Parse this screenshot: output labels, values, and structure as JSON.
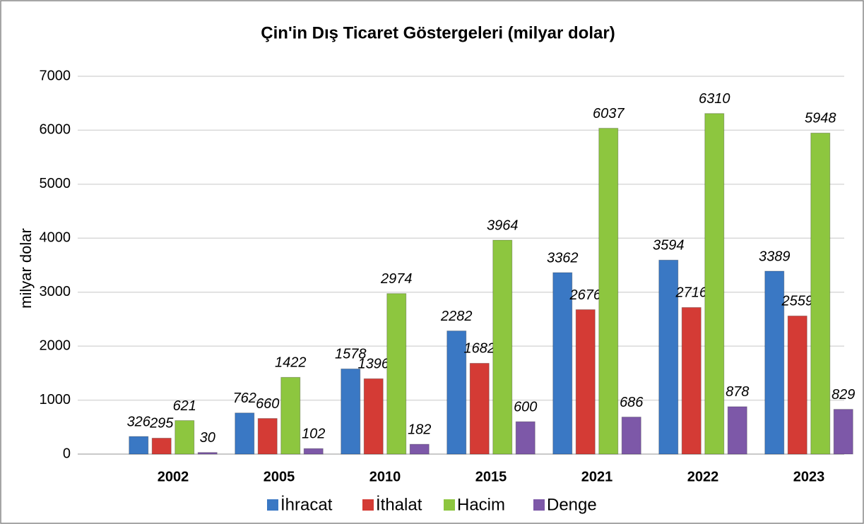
{
  "chart_data": {
    "type": "bar",
    "title": "Çin'in Dış Ticaret Göstergeleri  (milyar dolar)",
    "y_label": "milyar dolar",
    "categories": [
      "2002",
      "2005",
      "2010",
      "2015",
      "2021",
      "2022",
      "2023"
    ],
    "series": [
      {
        "name": "İhracat",
        "color": "#3a78c4",
        "values": [
          326,
          762,
          1578,
          2282,
          3362,
          3594,
          3389
        ]
      },
      {
        "name": "İthalat",
        "color": "#d43b35",
        "values": [
          295,
          660,
          1396,
          1682,
          2676,
          2716,
          2559
        ]
      },
      {
        "name": "Hacim",
        "color": "#8dc63f",
        "values": [
          621,
          1422,
          2974,
          3964,
          6037,
          6310,
          5948
        ]
      },
      {
        "name": "Denge",
        "color": "#7d58a8",
        "values": [
          30,
          102,
          182,
          600,
          686,
          878,
          829
        ]
      }
    ],
    "ylim": [
      0,
      7000
    ],
    "yticks": [
      0,
      1000,
      2000,
      3000,
      4000,
      5000,
      6000,
      7000
    ],
    "grid": true,
    "legend": "bottom"
  }
}
